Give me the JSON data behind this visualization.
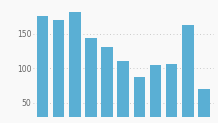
{
  "values": [
    175,
    169,
    181,
    144,
    131,
    110,
    88,
    105,
    106,
    162,
    70
  ],
  "bar_color": "#5aafd4",
  "background_color": "#f9f9f9",
  "yticks": [
    50,
    100,
    150
  ],
  "ylim": [
    30,
    195
  ],
  "grid_color": "#bbbbbb",
  "grid_style": "dotted"
}
